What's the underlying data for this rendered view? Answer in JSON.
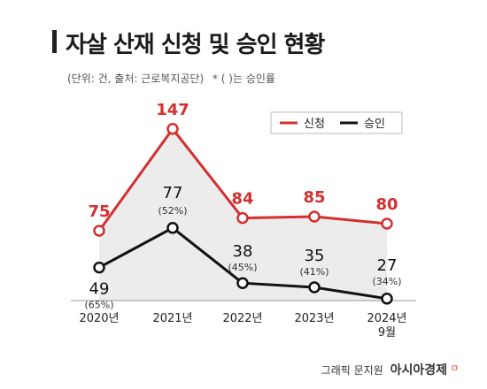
{
  "header": {
    "title": "자살 산재 신청 및 승인 현황",
    "unit_source": "(단위: 건, 출처: 근로복지공단)",
    "note": "* ( )는 승인률"
  },
  "footer": {
    "credit": "그래픽 문지원",
    "brand": "아시아경제",
    "brand_mark": "ㅁ"
  },
  "colors": {
    "applied": "#d32f2f",
    "approved": "#111111",
    "area": "#ececec"
  },
  "chart_data": {
    "type": "line",
    "title": "자살 산재 신청 및 승인 현황",
    "categories": [
      "2020년",
      "2021년",
      "2022년",
      "2023년",
      "2024년\n9월"
    ],
    "legend_position": "top-right",
    "grid": false,
    "series": [
      {
        "name": "신청",
        "values": [
          75,
          147,
          84,
          85,
          80
        ],
        "labels": [
          "75",
          "147",
          "84",
          "85",
          "80"
        ],
        "sublabels": [
          "",
          "",
          "",
          "",
          ""
        ]
      },
      {
        "name": "승인",
        "values": [
          49,
          77,
          38,
          35,
          27
        ],
        "labels": [
          "49",
          "77",
          "38",
          "35",
          "27"
        ],
        "sublabels": [
          "(65%)",
          "(52%)",
          "(45%)",
          "(41%)",
          "(34%)"
        ]
      }
    ]
  }
}
